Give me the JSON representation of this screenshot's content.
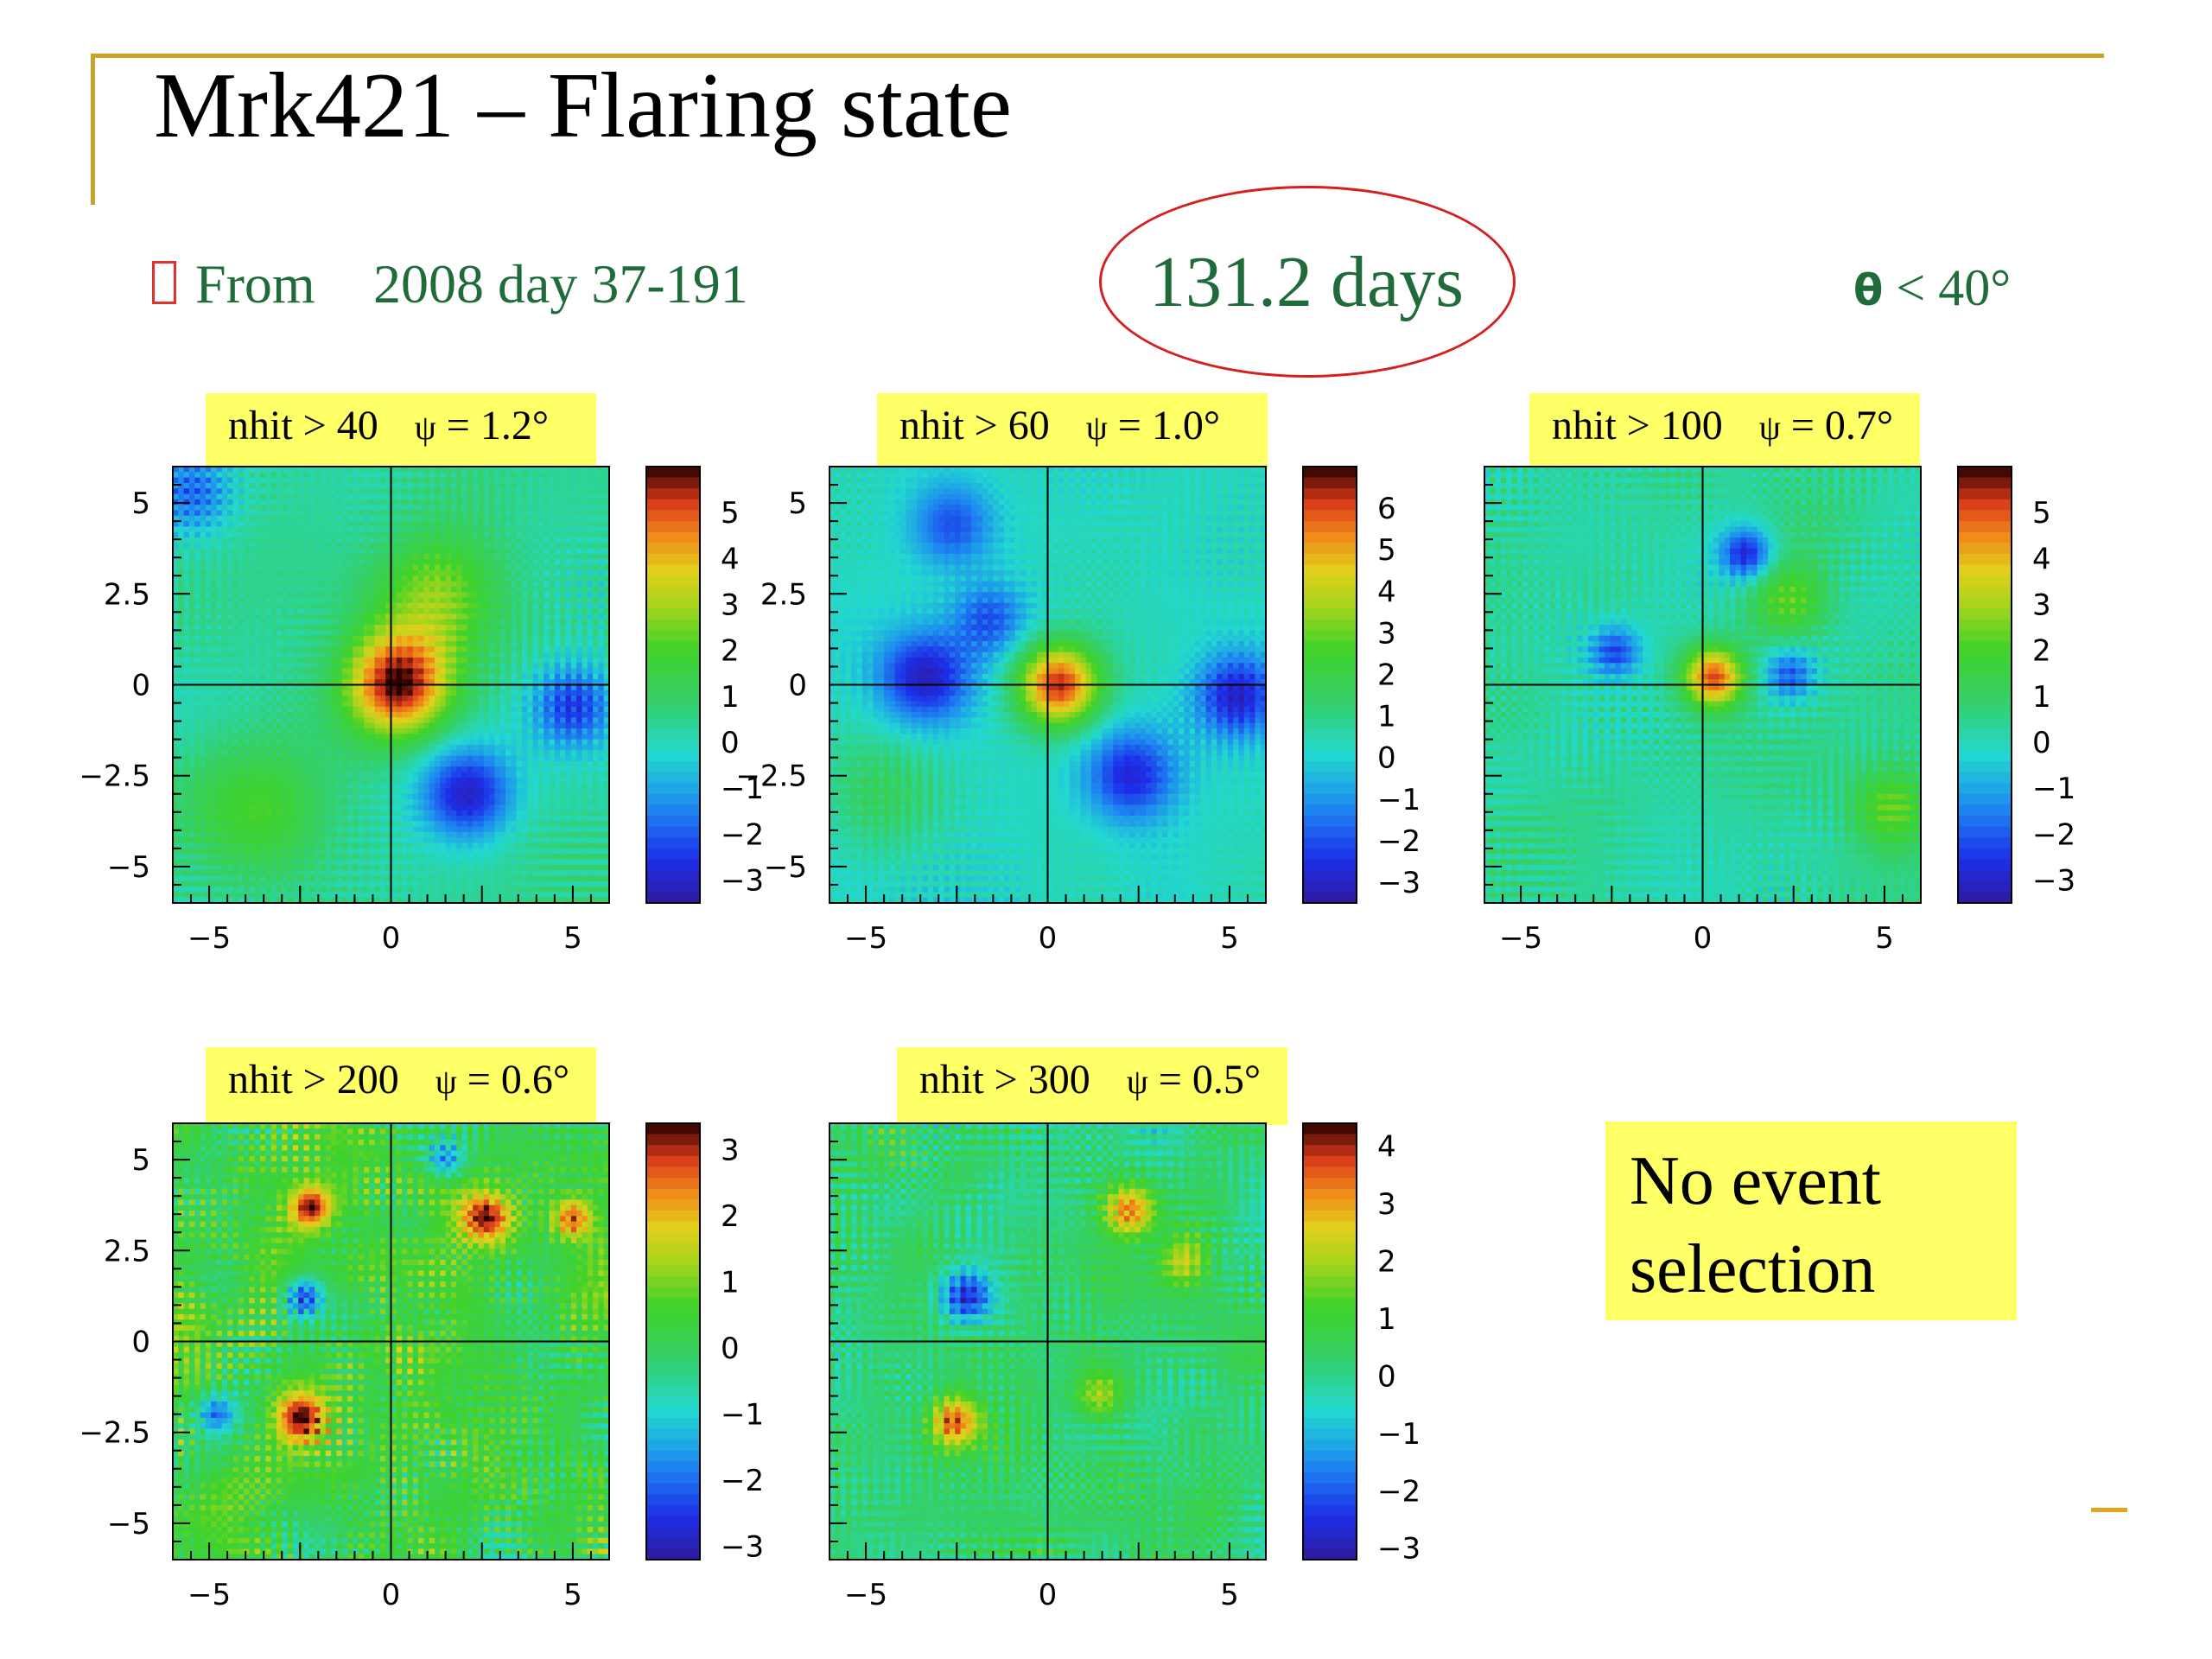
{
  "slide": {
    "title": "Mrk421 – Flaring state",
    "period_from": "From",
    "period_range": "2008  day  37-191",
    "duration": "131.2  days",
    "zenith_symbol": "θ",
    "zenith_cut": "< 40°"
  },
  "note": {
    "line1": "No event",
    "line2": "selection"
  },
  "colors": {
    "accent_line": "#c9a227",
    "text_green": "#1f6b3a",
    "label_bg": "#ffff66",
    "circle": "#d42020"
  },
  "chart_data": [
    {
      "type": "heatmap",
      "label": "nhit > 40",
      "psi": "= 1.2°",
      "xlim": [
        -6,
        6
      ],
      "ylim": [
        -6,
        6
      ],
      "xticks": [
        "−5",
        "0",
        "5"
      ],
      "yticks": [
        "5",
        "2.5",
        "0",
        "−2.5",
        "−5"
      ],
      "zlim": [
        -3.5,
        6
      ],
      "zticks": [
        "5",
        "4",
        "3",
        "2",
        "1",
        "0",
        "−1",
        "−2",
        "−3"
      ],
      "seed": 11,
      "noise": 0.9,
      "blur": 8,
      "features": [
        {
          "x": 0.2,
          "y": 0.0,
          "amp": 5.5,
          "sigma": 1.0
        },
        {
          "x": 1.2,
          "y": 2.4,
          "amp": 2.2,
          "sigma": 1.2
        },
        {
          "x": 2.1,
          "y": -3.0,
          "amp": -3.2,
          "sigma": 0.9
        },
        {
          "x": 5.0,
          "y": -0.6,
          "amp": -2.6,
          "sigma": 0.8
        },
        {
          "x": -5.5,
          "y": 5.3,
          "amp": -2.2,
          "sigma": 0.8
        },
        {
          "x": -3.6,
          "y": -3.5,
          "amp": 1.8,
          "sigma": 1.3
        }
      ]
    },
    {
      "type": "heatmap",
      "label": "nhit > 60",
      "psi": "= 1.0°",
      "xlim": [
        -6,
        6
      ],
      "ylim": [
        -6,
        6
      ],
      "xticks": [
        "−5",
        "0",
        "5"
      ],
      "yticks": [
        "5",
        "2.5",
        "0",
        "−2.5",
        "−5"
      ],
      "zlim": [
        -3.5,
        7
      ],
      "zticks": [
        "6",
        "5",
        "4",
        "3",
        "2",
        "1",
        "0",
        "−1",
        "−2",
        "−3"
      ],
      "seed": 23,
      "noise": 0.9,
      "blur": 7,
      "features": [
        {
          "x": 0.3,
          "y": 0.0,
          "amp": 6.0,
          "sigma": 0.8
        },
        {
          "x": -3.4,
          "y": 0.2,
          "amp": -3.2,
          "sigma": 0.9
        },
        {
          "x": 2.3,
          "y": -2.5,
          "amp": -3.0,
          "sigma": 0.9
        },
        {
          "x": 5.2,
          "y": -0.3,
          "amp": -3.2,
          "sigma": 0.8
        },
        {
          "x": -2.6,
          "y": 4.4,
          "amp": -2.2,
          "sigma": 0.8
        },
        {
          "x": -1.6,
          "y": 1.8,
          "amp": -2.0,
          "sigma": 0.7
        },
        {
          "x": -4.6,
          "y": -3.2,
          "amp": 1.6,
          "sigma": 1.2
        }
      ]
    },
    {
      "type": "heatmap",
      "label": "nhit > 100",
      "psi": "= 0.7°",
      "xlim": [
        -6,
        6
      ],
      "ylim": [
        -6,
        6
      ],
      "xticks": [
        "−5",
        "0",
        "5"
      ],
      "yticks": [],
      "zlim": [
        -3.5,
        6
      ],
      "zticks": [
        "5",
        "4",
        "3",
        "2",
        "1",
        "0",
        "−1",
        "−2",
        "−3"
      ],
      "seed": 37,
      "noise": 1.1,
      "blur": 5,
      "features": [
        {
          "x": 0.3,
          "y": 0.2,
          "amp": 5.0,
          "sigma": 0.6
        },
        {
          "x": 1.2,
          "y": 3.6,
          "amp": -3.0,
          "sigma": 0.5
        },
        {
          "x": -2.4,
          "y": 0.9,
          "amp": -2.4,
          "sigma": 0.5
        },
        {
          "x": 2.4,
          "y": 0.3,
          "amp": -2.2,
          "sigma": 0.5
        },
        {
          "x": 2.4,
          "y": 2.4,
          "amp": 2.0,
          "sigma": 0.8
        },
        {
          "x": 5.2,
          "y": -3.4,
          "amp": 2.0,
          "sigma": 0.8
        }
      ]
    },
    {
      "type": "heatmap",
      "label": "nhit > 200",
      "psi": "= 0.6°",
      "xlim": [
        -6,
        6
      ],
      "ylim": [
        -6,
        6
      ],
      "xticks": [
        "−5",
        "0",
        "5"
      ],
      "yticks": [
        "5",
        "2.5",
        "0",
        "−2.5",
        "−5"
      ],
      "zlim": [
        -3.2,
        3.4
      ],
      "zticks": [
        "3",
        "2",
        "1",
        "0",
        "−1",
        "−2",
        "−3"
      ],
      "seed": 51,
      "noise": 1.6,
      "blur": 3,
      "features": [
        {
          "x": 2.6,
          "y": 3.4,
          "amp": 3.0,
          "sigma": 0.5
        },
        {
          "x": -2.5,
          "y": -2.1,
          "amp": 3.0,
          "sigma": 0.5
        },
        {
          "x": -2.2,
          "y": 3.7,
          "amp": 2.6,
          "sigma": 0.4
        },
        {
          "x": 5.0,
          "y": 3.4,
          "amp": 2.6,
          "sigma": 0.4
        },
        {
          "x": -2.4,
          "y": 1.2,
          "amp": -2.6,
          "sigma": 0.4
        },
        {
          "x": 1.5,
          "y": 5.0,
          "amp": -2.0,
          "sigma": 0.4
        },
        {
          "x": -4.8,
          "y": -2.0,
          "amp": -2.0,
          "sigma": 0.4
        }
      ]
    },
    {
      "type": "heatmap",
      "label": "nhit > 300",
      "psi": "= 0.5°",
      "xlim": [
        -6,
        6
      ],
      "ylim": [
        -6,
        6
      ],
      "xticks": [
        "−5",
        "0",
        "5"
      ],
      "yticks": [],
      "zlim": [
        -3.2,
        4.4
      ],
      "zticks": [
        "4",
        "3",
        "2",
        "1",
        "0",
        "−1",
        "−2",
        "−3"
      ],
      "seed": 67,
      "noise": 1.5,
      "blur": 3,
      "features": [
        {
          "x": -2.6,
          "y": -2.2,
          "amp": 3.2,
          "sigma": 0.5
        },
        {
          "x": 2.3,
          "y": 3.6,
          "amp": 3.0,
          "sigma": 0.5
        },
        {
          "x": -2.2,
          "y": 1.2,
          "amp": -2.8,
          "sigma": 0.5
        },
        {
          "x": 3.7,
          "y": 2.2,
          "amp": 2.0,
          "sigma": 0.5
        },
        {
          "x": 1.4,
          "y": -1.5,
          "amp": 1.8,
          "sigma": 0.5
        }
      ]
    }
  ]
}
